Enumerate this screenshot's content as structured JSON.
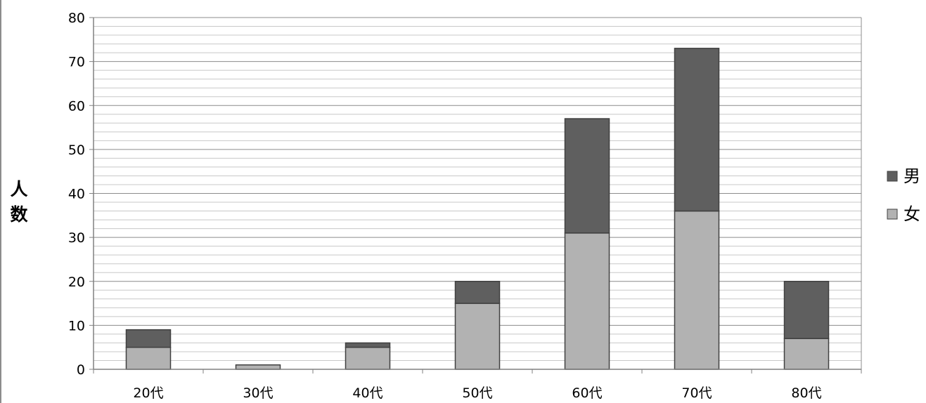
{
  "chart_data": {
    "type": "bar",
    "stacked": true,
    "title": "",
    "xlabel": "",
    "ylabel": "人数",
    "categories": [
      "20代",
      "30代",
      "40代",
      "50代",
      "60代",
      "70代",
      "80代"
    ],
    "series": [
      {
        "name": "女",
        "values": [
          5,
          1,
          5,
          15,
          31,
          36,
          7
        ],
        "color": "#b2b2b2"
      },
      {
        "name": "男",
        "values": [
          4,
          0,
          1,
          5,
          26,
          37,
          13
        ],
        "color": "#5f5f5f"
      }
    ],
    "ylim": [
      0,
      80
    ],
    "yticks": [
      0,
      10,
      20,
      30,
      40,
      50,
      60,
      70,
      80
    ],
    "minor_grid_step": 2,
    "grid": true,
    "legend": {
      "position": "right",
      "order": [
        "男",
        "女"
      ]
    },
    "colors": {
      "major_grid": "#8c8c8c",
      "minor_grid": "#c8c8c8",
      "axis": "#808080",
      "bar_outline": "#404040",
      "text": "#000000"
    }
  }
}
